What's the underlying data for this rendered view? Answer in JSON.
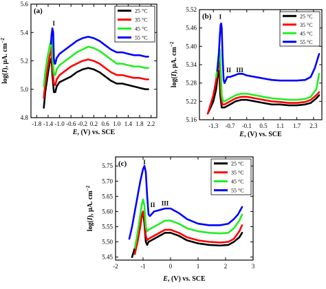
{
  "chart_data": [
    {
      "type": "line",
      "panel_label": "(a)",
      "xlabel_var": "E",
      "xlabel_rest": ", (V) vs. SCE",
      "ylabel_pre": "log(",
      "ylabel_var": "I",
      "ylabel_post": "), μA. cm",
      "ylabel_sup": "−2",
      "xlim": [
        -2.0,
        2.4
      ],
      "ylim": [
        4.8,
        5.6
      ],
      "xticks": [
        -1.8,
        -1.4,
        -1.0,
        -0.6,
        -0.2,
        0.2,
        0.6,
        1.0,
        1.4,
        1.8,
        2.2
      ],
      "xtick_labels": [
        "-1.8",
        "-1.4",
        "-1.0",
        "-0.6",
        "-0.2",
        "0.2",
        "0.6",
        "1.0",
        "1.4",
        "1.8",
        "2.2"
      ],
      "yticks": [
        4.8,
        5.0,
        5.2,
        5.4,
        5.6
      ],
      "ytick_labels": [
        "4.8",
        "5.0",
        "5.2",
        "5.4",
        "5.6"
      ],
      "legend": "top-right",
      "annotations": [
        {
          "text": "I",
          "x": -1.2,
          "y": 5.45
        }
      ],
      "series": [
        {
          "name": "25 °C",
          "color": "#000000",
          "x": [
            -1.55,
            -1.5,
            -1.45,
            -1.4,
            -1.35,
            -1.3,
            -1.28,
            -1.25,
            -1.2,
            -1.15,
            -1.1,
            -1.0,
            -0.8,
            -0.6,
            -0.4,
            -0.2,
            0.0,
            0.2,
            0.4,
            0.6,
            0.8,
            1.0,
            1.2,
            1.4,
            1.6,
            1.8,
            2.0,
            2.1
          ],
          "y": [
            4.87,
            4.98,
            5.05,
            5.12,
            5.18,
            5.21,
            5.22,
            5.1,
            4.98,
            4.98,
            5.02,
            5.05,
            5.07,
            5.09,
            5.12,
            5.14,
            5.15,
            5.14,
            5.12,
            5.09,
            5.06,
            5.04,
            5.04,
            5.03,
            5.02,
            5.01,
            5.0,
            5.0
          ]
        },
        {
          "name": "35 °C",
          "color": "#ff0000",
          "x": [
            -1.55,
            -1.5,
            -1.45,
            -1.4,
            -1.35,
            -1.3,
            -1.28,
            -1.25,
            -1.2,
            -1.15,
            -1.1,
            -1.0,
            -0.8,
            -0.6,
            -0.4,
            -0.2,
            0.0,
            0.2,
            0.4,
            0.6,
            0.8,
            1.0,
            1.2,
            1.4,
            1.6,
            1.8,
            2.0,
            2.1
          ],
          "y": [
            4.94,
            5.04,
            5.11,
            5.17,
            5.23,
            5.27,
            5.3,
            5.16,
            5.04,
            5.03,
            5.07,
            5.1,
            5.13,
            5.16,
            5.18,
            5.2,
            5.21,
            5.2,
            5.18,
            5.15,
            5.12,
            5.1,
            5.1,
            5.09,
            5.08,
            5.08,
            5.07,
            5.07
          ]
        },
        {
          "name": "45 °C",
          "color": "#22ee22",
          "x": [
            -1.55,
            -1.5,
            -1.45,
            -1.4,
            -1.35,
            -1.3,
            -1.28,
            -1.25,
            -1.2,
            -1.15,
            -1.1,
            -1.0,
            -0.8,
            -0.6,
            -0.4,
            -0.2,
            0.0,
            0.2,
            0.4,
            0.6,
            0.8,
            1.0,
            1.2,
            1.4,
            1.6,
            1.8,
            2.0,
            2.1
          ],
          "y": [
            5.02,
            5.12,
            5.19,
            5.25,
            5.3,
            5.34,
            5.36,
            5.24,
            5.11,
            5.1,
            5.14,
            5.17,
            5.2,
            5.23,
            5.26,
            5.28,
            5.3,
            5.29,
            5.27,
            5.24,
            5.21,
            5.18,
            5.18,
            5.17,
            5.16,
            5.16,
            5.15,
            5.15
          ]
        },
        {
          "name": "55 °C",
          "color": "#0000ff",
          "x": [
            -1.3,
            -1.28,
            -1.25,
            -1.22,
            -1.2,
            -1.17,
            -1.15,
            -1.1,
            -1.0,
            -0.8,
            -0.6,
            -0.4,
            -0.2,
            0.0,
            0.2,
            0.4,
            0.6,
            0.8,
            1.0,
            1.2,
            1.4,
            1.6,
            1.8,
            2.0,
            2.1
          ],
          "y": [
            5.32,
            5.38,
            5.43,
            5.4,
            5.22,
            5.18,
            5.18,
            5.22,
            5.25,
            5.28,
            5.31,
            5.34,
            5.36,
            5.37,
            5.36,
            5.34,
            5.31,
            5.28,
            5.26,
            5.26,
            5.25,
            5.24,
            5.24,
            5.23,
            5.23
          ]
        }
      ]
    },
    {
      "type": "line",
      "panel_label": "(b)",
      "xlabel_var": "E",
      "xlabel_rest": ", (V) vs. SCE",
      "ylabel_pre": "log(",
      "ylabel_var": "I",
      "ylabel_post": "), μA. cm",
      "ylabel_sup": "−2",
      "xlim": [
        -1.8,
        2.6
      ],
      "ylim": [
        5.16,
        5.52
      ],
      "xticks": [
        -1.3,
        -0.7,
        -0.1,
        0.5,
        1.1,
        1.7,
        2.3
      ],
      "xtick_labels": [
        "-1.3",
        "-0.7",
        "-0.1",
        "0.5",
        "1.1",
        "1.7",
        "2.3"
      ],
      "yticks": [
        5.16,
        5.22,
        5.28,
        5.34,
        5.4,
        5.46,
        5.52
      ],
      "ytick_labels": [
        "5.16",
        "5.22",
        "5.28",
        "5.34",
        "5.40",
        "5.46",
        "5.52"
      ],
      "legend": "top-right",
      "annotations": [
        {
          "text": "I",
          "x": -1.05,
          "y": 5.49
        },
        {
          "text": "II",
          "x": -0.75,
          "y": 5.315
        },
        {
          "text": "III",
          "x": -0.35,
          "y": 5.315
        }
      ],
      "series": [
        {
          "name": "25 °C",
          "color": "#000000",
          "x": [
            -1.5,
            -1.4,
            -1.3,
            -1.2,
            -1.15,
            -1.12,
            -1.08,
            -1.05,
            -1.0,
            -0.9,
            -0.7,
            -0.5,
            -0.3,
            -0.1,
            0.2,
            0.5,
            0.8,
            1.1,
            1.4,
            1.7,
            2.0,
            2.2,
            2.4,
            2.5
          ],
          "y": [
            5.18,
            5.2,
            5.22,
            5.26,
            5.3,
            5.32,
            5.3,
            5.24,
            5.2,
            5.2,
            5.21,
            5.22,
            5.225,
            5.225,
            5.22,
            5.215,
            5.21,
            5.21,
            5.207,
            5.207,
            5.21,
            5.215,
            5.23,
            5.24
          ]
        },
        {
          "name": "35 °C",
          "color": "#ff0000",
          "x": [
            -1.5,
            -1.4,
            -1.3,
            -1.2,
            -1.15,
            -1.1,
            -1.07,
            -1.03,
            -0.98,
            -0.9,
            -0.7,
            -0.5,
            -0.3,
            -0.1,
            0.2,
            0.5,
            0.8,
            1.1,
            1.4,
            1.7,
            2.0,
            2.2,
            2.4,
            2.5
          ],
          "y": [
            5.18,
            5.21,
            5.24,
            5.29,
            5.33,
            5.35,
            5.33,
            5.25,
            5.21,
            5.21,
            5.22,
            5.23,
            5.235,
            5.235,
            5.23,
            5.225,
            5.22,
            5.218,
            5.215,
            5.215,
            5.218,
            5.225,
            5.24,
            5.25
          ]
        },
        {
          "name": "45 °C",
          "color": "#22ee22",
          "x": [
            -1.2,
            -1.15,
            -1.1,
            -1.07,
            -1.04,
            -1.0,
            -0.95,
            -0.9,
            -0.7,
            -0.5,
            -0.3,
            -0.1,
            0.2,
            0.5,
            0.8,
            1.1,
            1.4,
            1.7,
            2.0,
            2.2,
            2.4,
            2.5
          ],
          "y": [
            5.3,
            5.34,
            5.38,
            5.39,
            5.34,
            5.24,
            5.22,
            5.22,
            5.23,
            5.24,
            5.245,
            5.245,
            5.24,
            5.235,
            5.23,
            5.228,
            5.225,
            5.225,
            5.228,
            5.235,
            5.26,
            5.31
          ]
        },
        {
          "name": "55 °C",
          "color": "#0000ff",
          "x": [
            -1.15,
            -1.1,
            -1.07,
            -1.04,
            -1.02,
            -1.0,
            -0.97,
            -0.93,
            -0.9,
            -0.8,
            -0.7,
            -0.55,
            -0.4,
            -0.25,
            -0.1,
            0.2,
            0.5,
            0.8,
            1.1,
            1.4,
            1.7,
            2.0,
            2.2,
            2.35,
            2.5
          ],
          "y": [
            5.32,
            5.38,
            5.43,
            5.47,
            5.475,
            5.46,
            5.37,
            5.29,
            5.28,
            5.3,
            5.3,
            5.305,
            5.31,
            5.31,
            5.305,
            5.3,
            5.295,
            5.29,
            5.288,
            5.288,
            5.288,
            5.29,
            5.3,
            5.33,
            5.375
          ]
        }
      ]
    },
    {
      "type": "line",
      "panel_label": "(c)",
      "xlabel_var": "E",
      "xlabel_rest": ", (V) vs. SCE",
      "ylabel_pre": "log(",
      "ylabel_var": "I",
      "ylabel_post": "), μA. cm",
      "ylabel_sup": "−2",
      "xlim": [
        -2.0,
        3.0
      ],
      "ylim": [
        5.44,
        5.78
      ],
      "xticks": [
        -2,
        -1,
        0,
        1,
        2,
        3
      ],
      "xtick_labels": [
        "-2",
        "-1",
        "0",
        "1",
        "2",
        "3"
      ],
      "yticks": [
        5.45,
        5.5,
        5.55,
        5.6,
        5.65,
        5.7,
        5.75
      ],
      "ytick_labels": [
        "5.45",
        "5.50",
        "5.55",
        "5.60",
        "5.65",
        "5.70",
        "5.75"
      ],
      "legend": "top-right",
      "annotations": [
        {
          "text": "I",
          "x": -0.95,
          "y": 5.755
        },
        {
          "text": "II",
          "x": -0.65,
          "y": 5.615
        },
        {
          "text": "III",
          "x": -0.2,
          "y": 5.62
        }
      ],
      "series": [
        {
          "name": "25 °C",
          "color": "#000000",
          "x": [
            -1.4,
            -1.3,
            -1.2,
            -1.1,
            -1.0,
            -0.95,
            -0.9,
            -0.85,
            -0.8,
            -0.6,
            -0.4,
            -0.2,
            0.0,
            0.3,
            0.6,
            1.0,
            1.4,
            1.8,
            2.1,
            2.3,
            2.5,
            2.6
          ],
          "y": [
            5.45,
            5.48,
            5.52,
            5.57,
            5.6,
            5.56,
            5.5,
            5.49,
            5.5,
            5.51,
            5.52,
            5.53,
            5.53,
            5.52,
            5.505,
            5.495,
            5.49,
            5.488,
            5.49,
            5.5,
            5.515,
            5.53
          ]
        },
        {
          "name": "35 °C",
          "color": "#ff0000",
          "x": [
            -1.3,
            -1.2,
            -1.1,
            -1.05,
            -1.0,
            -0.95,
            -0.9,
            -0.85,
            -0.8,
            -0.6,
            -0.4,
            -0.2,
            0.0,
            0.3,
            0.6,
            1.0,
            1.4,
            1.8,
            2.1,
            2.3,
            2.5,
            2.6
          ],
          "y": [
            5.46,
            5.5,
            5.55,
            5.58,
            5.6,
            5.58,
            5.52,
            5.505,
            5.51,
            5.52,
            5.53,
            5.54,
            5.54,
            5.53,
            5.515,
            5.505,
            5.5,
            5.498,
            5.5,
            5.51,
            5.535,
            5.555
          ]
        },
        {
          "name": "45 °C",
          "color": "#22ee22",
          "x": [
            -1.3,
            -1.2,
            -1.1,
            -1.05,
            -1.0,
            -0.95,
            -0.9,
            -0.85,
            -0.8,
            -0.6,
            -0.4,
            -0.2,
            0.0,
            0.3,
            0.6,
            1.0,
            1.4,
            1.8,
            2.1,
            2.3,
            2.5,
            2.6
          ],
          "y": [
            5.48,
            5.53,
            5.59,
            5.62,
            5.64,
            5.62,
            5.55,
            5.535,
            5.54,
            5.55,
            5.56,
            5.57,
            5.57,
            5.56,
            5.545,
            5.535,
            5.53,
            5.528,
            5.53,
            5.545,
            5.57,
            5.59
          ]
        },
        {
          "name": "55 °C",
          "color": "#0000ff",
          "x": [
            -1.5,
            -1.4,
            -1.3,
            -1.2,
            -1.1,
            -1.0,
            -0.95,
            -0.9,
            -0.85,
            -0.8,
            -0.75,
            -0.7,
            -0.6,
            -0.4,
            -0.2,
            0.0,
            0.3,
            0.6,
            1.0,
            1.4,
            1.8,
            2.1,
            2.3,
            2.45,
            2.6
          ],
          "y": [
            5.51,
            5.55,
            5.6,
            5.65,
            5.7,
            5.74,
            5.75,
            5.73,
            5.65,
            5.59,
            5.585,
            5.59,
            5.6,
            5.605,
            5.61,
            5.61,
            5.595,
            5.575,
            5.56,
            5.555,
            5.555,
            5.56,
            5.575,
            5.59,
            5.615
          ]
        }
      ]
    }
  ]
}
